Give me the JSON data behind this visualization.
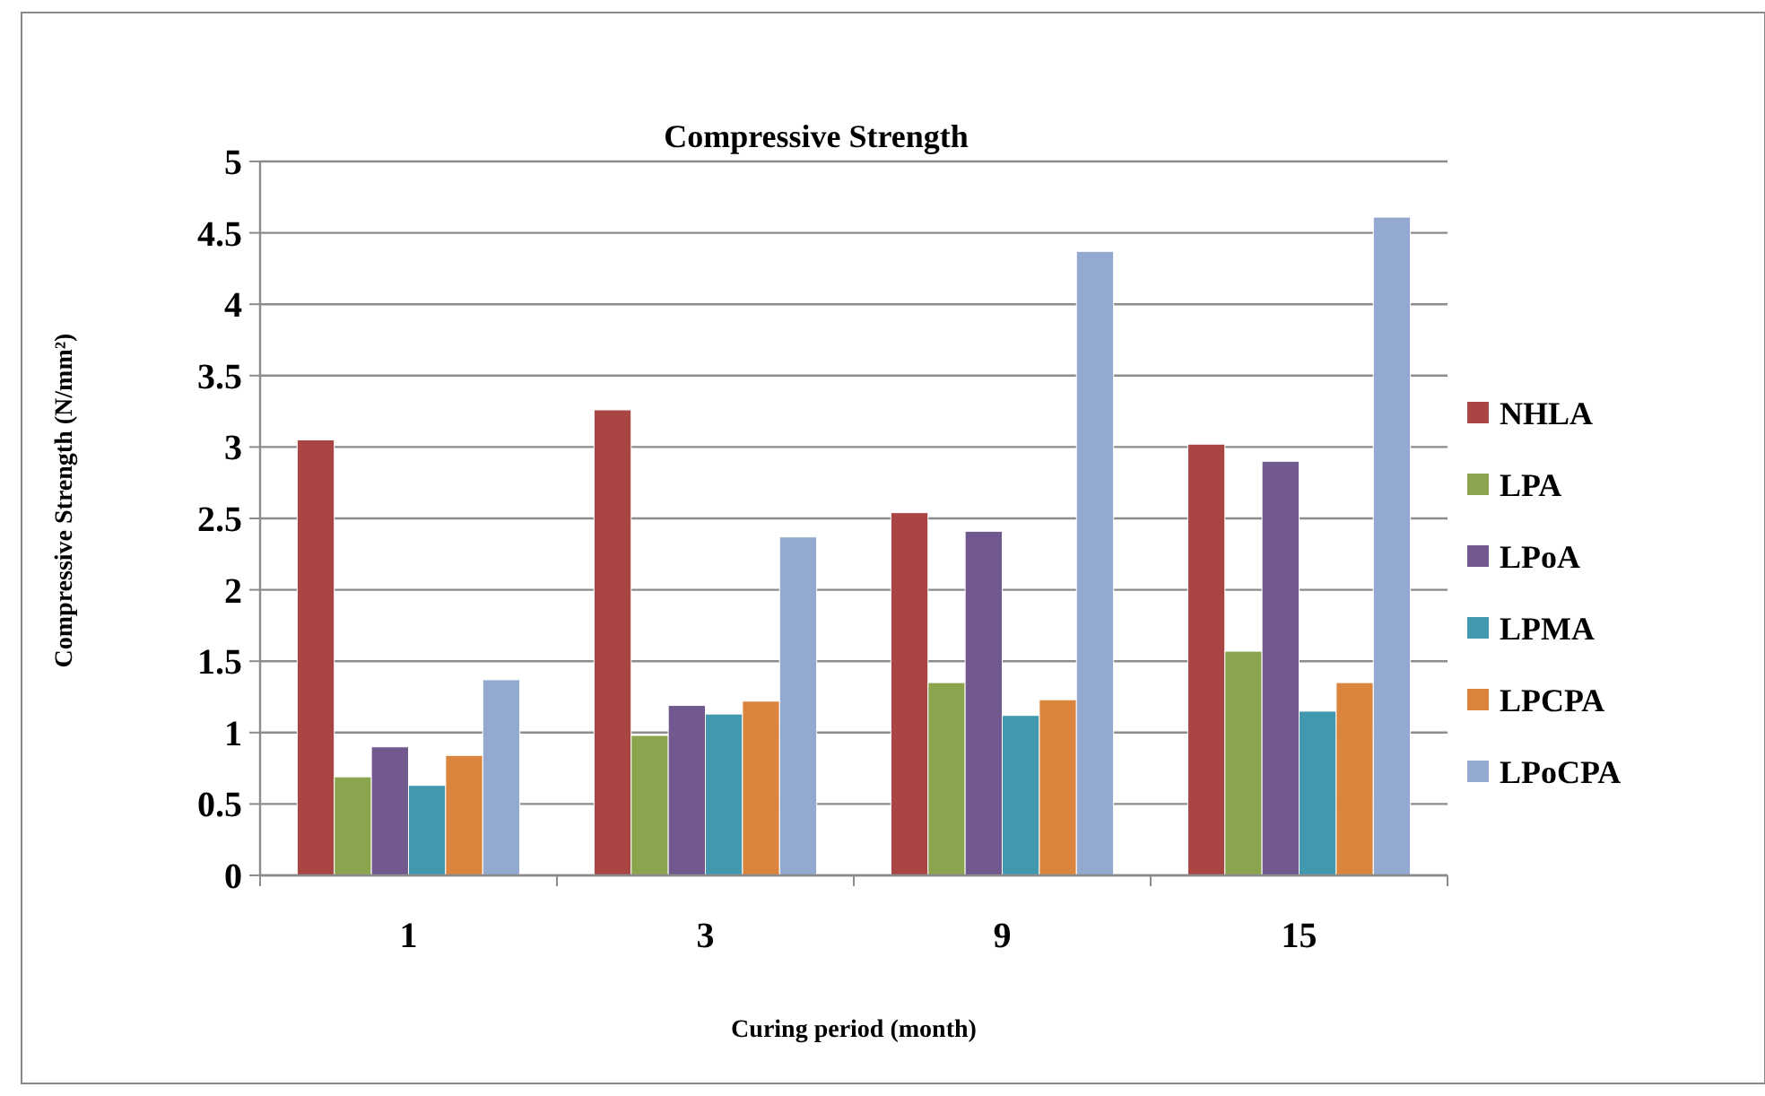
{
  "chart_data": {
    "type": "bar",
    "title": "Compressive Strength",
    "xlabel": "Curing period (month)",
    "ylabel": "Compressive Strength (N/mm²)",
    "categories": [
      "1",
      "3",
      "9",
      "15"
    ],
    "series": [
      {
        "name": "NHLA",
        "color": "#a94643",
        "values": [
          3.05,
          3.26,
          2.54,
          3.02
        ]
      },
      {
        "name": "LPA",
        "color": "#8aa54e",
        "values": [
          0.69,
          0.98,
          1.35,
          1.57
        ]
      },
      {
        "name": "LPoA",
        "color": "#71588f",
        "values": [
          0.9,
          1.19,
          2.41,
          2.9
        ]
      },
      {
        "name": "LPMA",
        "color": "#4298af",
        "values": [
          0.63,
          1.13,
          1.12,
          1.15
        ]
      },
      {
        "name": "LPCPA",
        "color": "#db843d",
        "values": [
          0.84,
          1.22,
          1.23,
          1.35
        ]
      },
      {
        "name": "LPoCPA",
        "color": "#94a9cf",
        "values": [
          1.37,
          2.37,
          4.37,
          4.61
        ]
      }
    ],
    "ylim": [
      0,
      5
    ],
    "yticks": [
      0,
      0.5,
      1,
      1.5,
      2,
      2.5,
      3,
      3.5,
      4,
      4.5,
      5
    ],
    "grid": "y",
    "legend": "right"
  }
}
